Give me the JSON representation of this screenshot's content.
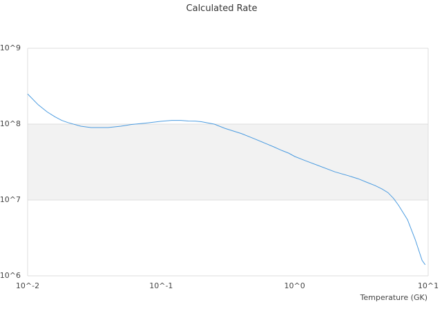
{
  "chart_data": {
    "type": "line",
    "title": "Calculated Rate",
    "xlabel": "Temperature (GK)",
    "ylabel": "",
    "x_scale": "log",
    "y_scale": "log",
    "xlim": [
      0.01,
      10
    ],
    "ylim": [
      1000000,
      1000000000
    ],
    "x_tick_values": [
      0.01,
      0.1,
      1,
      10
    ],
    "x_tick_labels": [
      "10^-2",
      "10^-1",
      "10^0",
      "10^1"
    ],
    "y_tick_values": [
      1000000,
      10000000,
      100000000,
      1000000000
    ],
    "y_tick_labels": [
      "10^6",
      "10^7",
      "10^8",
      "10^9"
    ],
    "alternating_band": true,
    "grid": true,
    "legend": "none",
    "colors": {
      "line": "#4a9be0",
      "band": "#f2f2f2",
      "grid": "#dddddd",
      "text": "#444444"
    },
    "series": [
      {
        "x": [
          0.01,
          0.012,
          0.014,
          0.016,
          0.018,
          0.02,
          0.025,
          0.03,
          0.035,
          0.04,
          0.05,
          0.06,
          0.07,
          0.08,
          0.1,
          0.12,
          0.14,
          0.16,
          0.18,
          0.2,
          0.25,
          0.3,
          0.4,
          0.5,
          0.6,
          0.7,
          0.8,
          0.9,
          1.0,
          1.2,
          1.5,
          2.0,
          2.5,
          3.0,
          3.5,
          4.0,
          4.5,
          5.0,
          5.5,
          6.0,
          7.0,
          8.0,
          9.0,
          9.5
        ],
        "y": [
          250000000,
          180000000,
          145000000,
          125000000,
          112000000,
          105000000,
          94000000,
          90000000,
          90000000,
          90000000,
          94000000,
          99000000,
          101500000,
          104000000,
          109000000,
          112000000,
          112000000,
          110000000,
          109500000,
          107500000,
          100000000,
          88000000,
          75000000,
          64000000,
          56000000,
          50000000,
          45000000,
          41500000,
          37500000,
          33000000,
          28500000,
          23500000,
          21000000,
          19000000,
          17000000,
          15500000,
          14000000,
          12500000,
          10500000,
          8500000,
          5500000,
          3000000,
          1600000,
          1400000
        ]
      }
    ]
  }
}
